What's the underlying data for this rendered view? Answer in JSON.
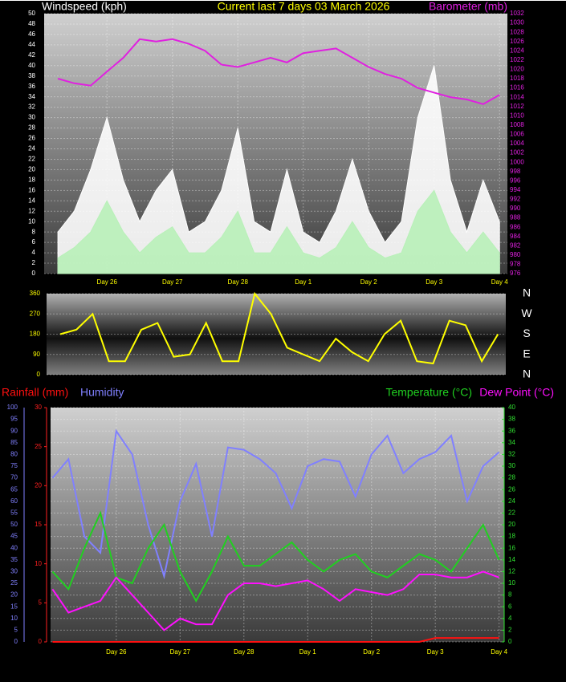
{
  "chart_data": [
    {
      "type": "line",
      "title": "Current last 7 days 03 March 2026",
      "y_label": "Windspeed (kph)",
      "y2_label": "Barometer (mb)",
      "grid": true,
      "xlim": [
        0.04,
        7.12
      ],
      "xticks": [
        {
          "value": 1,
          "label": "Day 26"
        },
        {
          "value": 2,
          "label": "Day 27"
        },
        {
          "value": 3,
          "label": "Day 28"
        },
        {
          "value": 4,
          "label": "Day 1"
        },
        {
          "value": 5,
          "label": "Day 2"
        },
        {
          "value": 6,
          "label": "Day 3"
        },
        {
          "value": 7,
          "label": "Day 4"
        }
      ],
      "ylim": [
        0,
        50
      ],
      "yticks": [
        0,
        2,
        4,
        6,
        8,
        10,
        12,
        14,
        16,
        18,
        20,
        22,
        24,
        26,
        28,
        30,
        32,
        34,
        36,
        38,
        40,
        42,
        44,
        46,
        48,
        50
      ],
      "y2lim": [
        976,
        1032
      ],
      "y2ticks": [
        976,
        978,
        980,
        982,
        984,
        986,
        988,
        990,
        992,
        994,
        996,
        998,
        1000,
        1002,
        1004,
        1006,
        1008,
        1010,
        1012,
        1014,
        1016,
        1018,
        1020,
        1022,
        1024,
        1026,
        1028,
        1030,
        1032
      ],
      "x": [
        0.25,
        0.5,
        0.75,
        1,
        1.25,
        1.5,
        1.75,
        2,
        2.25,
        2.5,
        2.75,
        3,
        3.25,
        3.5,
        3.75,
        4,
        4.25,
        4.5,
        4.75,
        5,
        5.25,
        5.5,
        5.75,
        6,
        6.25,
        6.5,
        6.75,
        7
      ],
      "series": [
        {
          "color": "#ffffff",
          "area": true,
          "values": [
            8,
            12,
            20,
            30,
            18,
            10,
            16,
            20,
            8,
            10,
            16,
            28,
            10,
            8,
            20,
            8,
            6,
            12,
            22,
            12,
            6,
            10,
            30,
            40,
            18,
            8,
            18,
            10
          ]
        },
        {
          "color": "#b8f0b8",
          "area": true,
          "values": [
            3,
            5,
            8,
            14,
            8,
            4,
            7,
            9,
            4,
            4,
            7,
            12,
            4,
            4,
            9,
            4,
            3,
            5,
            10,
            5,
            3,
            4,
            12,
            16,
            8,
            4,
            8,
            4
          ]
        },
        {
          "color": "#e020e0",
          "axis": "y2",
          "values": [
            1018,
            1017,
            1016.5,
            1019.5,
            1022.5,
            1026.5,
            1026,
            1026.5,
            1025.5,
            1024,
            1021,
            1020.5,
            1021.5,
            1022.5,
            1021.5,
            1023.5,
            1024,
            1024.5,
            1022.5,
            1020.5,
            1019,
            1018,
            1016,
            1015,
            1014,
            1013.5,
            1012.5,
            1014.5
          ]
        }
      ]
    },
    {
      "type": "line",
      "grid": true,
      "xlim": [
        0.04,
        7.12
      ],
      "ylim": [
        0,
        360
      ],
      "yticks": [
        0,
        90,
        180,
        270,
        360
      ],
      "y2lim": [
        0,
        360
      ],
      "y2ticks": [
        {
          "value": 360,
          "label": "N"
        },
        {
          "value": 270,
          "label": "W"
        },
        {
          "value": 180,
          "label": "S"
        },
        {
          "value": 90,
          "label": "E"
        },
        {
          "value": 0,
          "label": "N"
        }
      ],
      "x": [
        0.25,
        0.5,
        0.75,
        1,
        1.25,
        1.5,
        1.75,
        2,
        2.25,
        2.5,
        2.75,
        3,
        3.25,
        3.5,
        3.75,
        4,
        4.25,
        4.5,
        4.75,
        5,
        5.25,
        5.5,
        5.75,
        6,
        6.25,
        6.5,
        6.75,
        7
      ],
      "series": [
        {
          "color": "#ffff00",
          "values": [
            180,
            200,
            270,
            60,
            60,
            200,
            230,
            80,
            90,
            230,
            60,
            60,
            360,
            270,
            120,
            90,
            60,
            160,
            100,
            60,
            180,
            240,
            60,
            50,
            240,
            220,
            60,
            180
          ]
        }
      ]
    },
    {
      "type": "line",
      "grid": true,
      "xlim": [
        -0.03,
        7.08
      ],
      "xticks": [
        {
          "value": 1,
          "label": "Day 26"
        },
        {
          "value": 2,
          "label": "Day 27"
        },
        {
          "value": 3,
          "label": "Day 28"
        },
        {
          "value": 4,
          "label": "Day 1"
        },
        {
          "value": 5,
          "label": "Day 2"
        },
        {
          "value": 6,
          "label": "Day 3"
        },
        {
          "value": 7,
          "label": "Day 4"
        }
      ],
      "ylim": [
        0,
        100
      ],
      "yticks": [
        0,
        5,
        10,
        15,
        20,
        25,
        30,
        35,
        40,
        45,
        50,
        55,
        60,
        65,
        70,
        75,
        80,
        85,
        90,
        95,
        100
      ],
      "y3lim": [
        0,
        30
      ],
      "y3ticks": [
        0,
        5,
        10,
        15,
        20,
        25,
        30
      ],
      "y2lim": [
        0,
        40
      ],
      "y2ticks": [
        0,
        2,
        4,
        6,
        8,
        10,
        12,
        14,
        16,
        18,
        20,
        22,
        24,
        26,
        28,
        30,
        32,
        34,
        36,
        38,
        40
      ],
      "x": [
        0,
        0.25,
        0.5,
        0.75,
        1,
        1.25,
        1.5,
        1.75,
        2,
        2.25,
        2.5,
        2.75,
        3,
        3.25,
        3.5,
        3.75,
        4,
        4.25,
        4.5,
        4.75,
        5,
        5.25,
        5.5,
        5.75,
        6,
        6.25,
        6.5,
        6.75,
        7
      ],
      "series": [
        {
          "name": "Rainfall (mm)",
          "color": "#ff1010",
          "axis": "y3",
          "values": [
            0,
            0,
            0,
            0,
            0,
            0,
            0,
            0,
            0,
            0,
            0,
            0,
            0,
            0,
            0,
            0,
            0,
            0,
            0,
            0,
            0,
            0,
            0,
            0,
            0.5,
            0.5,
            0.5,
            0.5,
            0.5
          ]
        },
        {
          "name": "Humidity",
          "color": "#8080ff",
          "values": [
            70,
            78,
            45,
            38,
            90,
            80,
            50,
            28,
            60,
            76,
            45,
            83,
            82,
            78,
            72,
            57,
            75,
            78,
            77,
            62,
            80,
            88,
            72,
            78,
            81,
            88,
            60,
            75,
            81
          ]
        },
        {
          "name": "Temperature (°C)",
          "color": "#20d020",
          "axis": "y2",
          "values": [
            12,
            9,
            16,
            22,
            11,
            10,
            16,
            20,
            12,
            7,
            12,
            18,
            13,
            13,
            15,
            17,
            14,
            12,
            14,
            15,
            12,
            11,
            13,
            15,
            14,
            12,
            16,
            20,
            14
          ]
        },
        {
          "name": "Dew Point (°C)",
          "color": "#ff10ff",
          "axis": "y2",
          "values": [
            9,
            5,
            6,
            7,
            11,
            8,
            5,
            2,
            4,
            3,
            3,
            8,
            10,
            10,
            9.5,
            10,
            10.5,
            9,
            7,
            9,
            8.5,
            8,
            9,
            11.5,
            11.5,
            11,
            11,
            12,
            11
          ]
        }
      ]
    }
  ]
}
